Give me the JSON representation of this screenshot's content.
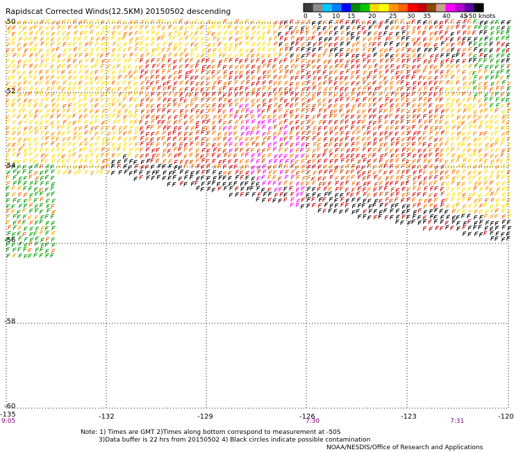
{
  "title": "Rapidscat Corrected Winds(12.5KM) 20150502 descending",
  "legend": {
    "unit": "knots",
    "labels": [
      "0",
      "5",
      "10",
      "15",
      "20",
      "25",
      "30",
      "35",
      "40",
      "45",
      ">50 knots"
    ],
    "colors": [
      "#3c3c3c",
      "#8c8c8c",
      "#00c8ff",
      "#0080ff",
      "#0000ff",
      "#008c00",
      "#00c800",
      "#ffd800",
      "#ffff00",
      "#ff9600",
      "#ff6400",
      "#ff0000",
      "#c80000",
      "#8c4600",
      "#c8a08c",
      "#ff00ff",
      "#b400d2",
      "#5a00a0",
      "#000000"
    ]
  },
  "lat_labels": [
    "-50",
    "-52",
    "-54",
    "-56",
    "-58",
    "-60"
  ],
  "lon_labels": [
    "-135",
    "-132",
    "-129",
    "-126",
    "-123",
    "-120"
  ],
  "time_labels": [
    "9:05",
    "7:30",
    "7:31"
  ],
  "notes": {
    "line1": "Note: 1) Times are GMT 2)Times along bottom correspond to measurement at -50S",
    "line2": "3)Data buffer is 22 hrs from 20150502 4) Black circles indicate possible contamination"
  },
  "credit": "NOAA/NESDIS/Office of Research and Applications",
  "grid_color": "#000000"
}
